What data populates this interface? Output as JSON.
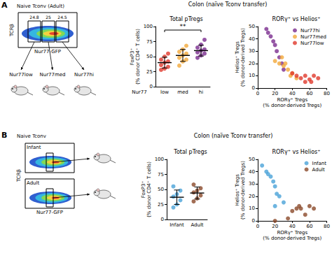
{
  "panel_labels": [
    "A",
    "B"
  ],
  "headers": [
    "Colon (naïve Tconv transfer)",
    "Colon (naïve Tconv transfer)"
  ],
  "flow": {
    "A": {
      "title": "Naive Tconv (Adult)",
      "gates": [
        24.8,
        25,
        24.5
      ],
      "y_label": "TCRβ",
      "x_label": "Nur77-GFP",
      "groups": [
        "Nur77low",
        "Nur77med",
        "Nur77hi"
      ]
    },
    "B": {
      "title": "Naive Tconv",
      "groups": [
        "Infant",
        "Adult"
      ],
      "y_label": "TCRβ",
      "x_label": "Nur77-GFP"
    }
  },
  "chart_data": [
    {
      "type": "dot",
      "title": "Total pTregs",
      "x_label": "Nur77",
      "y_label": "FoxP3⁺\n(% donor CD4⁺ T cells)",
      "categories": [
        "low",
        "med",
        "hi"
      ],
      "values": [
        [
          28,
          30,
          33,
          36,
          40,
          42,
          45,
          50,
          55
        ],
        [
          35,
          42,
          45,
          48,
          52,
          55,
          58,
          62,
          68
        ],
        [
          48,
          52,
          55,
          57,
          60,
          62,
          65,
          70,
          78
        ]
      ],
      "colors": [
        "#e0392d",
        "#f2a93b",
        "#7b2d8e"
      ],
      "mean": [
        40,
        52,
        60
      ],
      "error": [
        9,
        10,
        9
      ],
      "ylim": [
        0,
        100
      ],
      "yticks": [
        0,
        25,
        50,
        75,
        100
      ],
      "annotations": [
        {
          "text": "**",
          "from": "low",
          "to": "hi"
        }
      ]
    },
    {
      "type": "scatter",
      "title": "RORγ⁺ vs Helios⁺",
      "x_label": "RORγ⁺ Tregs\n(% donor-derived Tregs)",
      "y_label": "Helios⁺ Tregs\n(% donor-derived Tregs)",
      "xlim": [
        0,
        80
      ],
      "xticks": [
        0,
        20,
        40,
        60,
        80
      ],
      "ylim": [
        0,
        50
      ],
      "yticks": [
        0,
        10,
        20,
        30,
        40,
        50
      ],
      "legend": "top-right",
      "series": [
        {
          "name": "Nur77hi",
          "color": "#7b2d8e",
          "x": [
            10,
            12,
            15,
            18,
            20,
            22,
            25,
            28,
            30
          ],
          "values": [
            48,
            45,
            42,
            38,
            35,
            30,
            25,
            20,
            15
          ]
        },
        {
          "name": "Nur77med",
          "color": "#f2a93b",
          "x": [
            20,
            25,
            28,
            30,
            35,
            38,
            40,
            45,
            32
          ],
          "values": [
            22,
            20,
            25,
            18,
            15,
            10,
            12,
            8,
            20
          ]
        },
        {
          "name": "Nur77low",
          "color": "#e0392d",
          "x": [
            40,
            45,
            50,
            55,
            55,
            60,
            62,
            65,
            70
          ],
          "values": [
            12,
            10,
            8,
            10,
            5,
            7,
            5,
            10,
            8
          ]
        }
      ]
    },
    {
      "type": "dot",
      "title": "Total pTregs",
      "y_label": "FoxP3⁺\n(% donor CD4⁺ T cells)",
      "categories": [
        "Infant",
        "Adult"
      ],
      "values": [
        [
          20,
          25,
          32,
          38,
          42,
          48,
          55
        ],
        [
          30,
          35,
          40,
          45,
          48,
          52,
          58
        ]
      ],
      "colors": [
        "#4aa3d8",
        "#8b4a2b"
      ],
      "mean": [
        37,
        44
      ],
      "error": [
        12,
        10
      ],
      "ylim": [
        0,
        100
      ],
      "yticks": [
        0,
        25,
        50,
        75,
        100
      ]
    },
    {
      "type": "scatter",
      "title": "RORγ⁺ vs Helios⁺",
      "x_label": "RORγ⁺ Tregs\n(% donor-derived Tregs)",
      "y_label": "Helios⁺ Tregs\n(% donor-derived Tregs)",
      "xlim": [
        0,
        80
      ],
      "xticks": [
        0,
        20,
        40,
        60,
        80
      ],
      "ylim": [
        0,
        50
      ],
      "yticks": [
        0,
        10,
        20,
        30,
        40,
        50
      ],
      "legend": "top-right",
      "series": [
        {
          "name": "Infant",
          "color": "#4aa3d8",
          "x": [
            5,
            10,
            12,
            15,
            18,
            20,
            22,
            25,
            20,
            30
          ],
          "values": [
            45,
            40,
            38,
            36,
            32,
            28,
            22,
            20,
            12,
            15
          ]
        },
        {
          "name": "Adult",
          "color": "#8b4a2b",
          "x": [
            20,
            35,
            40,
            45,
            48,
            50,
            55,
            60,
            65
          ],
          "values": [
            0,
            2,
            8,
            10,
            12,
            10,
            5,
            12,
            10
          ]
        }
      ]
    }
  ]
}
